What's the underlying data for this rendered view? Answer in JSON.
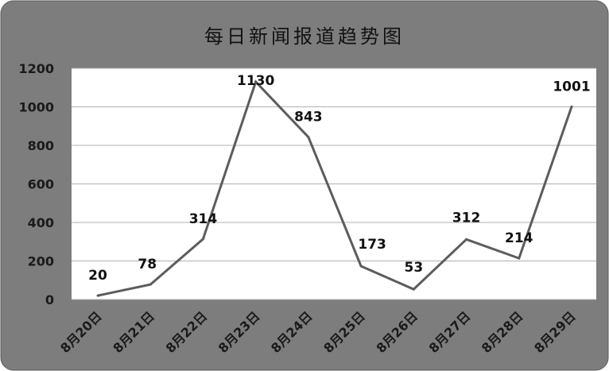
{
  "chart_data": {
    "type": "line",
    "title": "每日新闻报道趋势图",
    "categories": [
      "8月20日",
      "8月21日",
      "8月22日",
      "8月23日",
      "8月24日",
      "8月25日",
      "8月26日",
      "8月27日",
      "8月28日",
      "8月29日"
    ],
    "series": [
      {
        "values": [
          20,
          78,
          314,
          1130,
          843,
          173,
          53,
          312,
          214,
          1001
        ]
      }
    ],
    "data_labels": [
      "20",
      "78",
      "314",
      "1130",
      "843",
      "173",
      "53",
      "312",
      "214",
      "1001"
    ],
    "y_ticks": [
      "0",
      "200",
      "400",
      "600",
      "800",
      "1000",
      "1200"
    ],
    "ylim": [
      0,
      1200
    ],
    "grid": true,
    "legend": "none",
    "colors": {
      "frame": "#7d7d7d",
      "plot_bg": "#ffffff",
      "line": "#5c5c5c",
      "gridline": "#b0b0b0"
    }
  }
}
